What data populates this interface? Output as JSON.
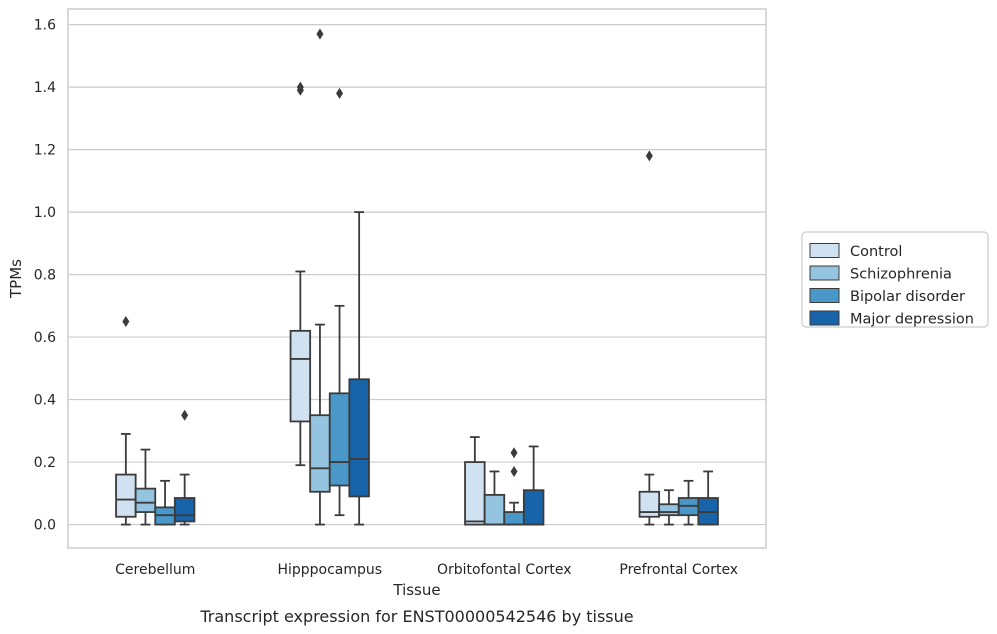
{
  "chart_data": {
    "type": "boxplot",
    "title": "",
    "caption": "Transcript expression for ENST00000542546 by tissue",
    "xlabel": "Tissue",
    "ylabel": "TPMs",
    "ylim": [
      -0.075,
      1.65
    ],
    "yticks": [
      "0.0",
      "0.2",
      "0.4",
      "0.6",
      "0.8",
      "1.0",
      "1.2",
      "1.4",
      "1.6"
    ],
    "grid": true,
    "legend_position": "outside-right",
    "categories": [
      "Cerebellum",
      "Hipppocampus",
      "Orbitofontal Cortex",
      "Prefrontal Cortex"
    ],
    "series": [
      {
        "name": "Control",
        "color": "#d0e1f2",
        "boxes": [
          {
            "min": 0.0,
            "q1": 0.025,
            "median": 0.08,
            "q3": 0.16,
            "max": 0.29,
            "outliers": [
              0.65
            ]
          },
          {
            "min": 0.19,
            "q1": 0.33,
            "median": 0.53,
            "q3": 0.62,
            "max": 0.81,
            "outliers": [
              1.39,
              1.4
            ]
          },
          {
            "min": 0.0,
            "q1": 0.0,
            "median": 0.01,
            "q3": 0.2,
            "max": 0.28,
            "outliers": []
          },
          {
            "min": 0.0,
            "q1": 0.025,
            "median": 0.04,
            "q3": 0.105,
            "max": 0.16,
            "outliers": [
              1.18
            ]
          }
        ]
      },
      {
        "name": "Schizophrenia",
        "color": "#94c4df",
        "boxes": [
          {
            "min": 0.0,
            "q1": 0.04,
            "median": 0.07,
            "q3": 0.115,
            "max": 0.24,
            "outliers": []
          },
          {
            "min": 0.0,
            "q1": 0.105,
            "median": 0.18,
            "q3": 0.35,
            "max": 0.64,
            "outliers": [
              1.57
            ]
          },
          {
            "min": 0.0,
            "q1": 0.0,
            "median": 0.0,
            "q3": 0.095,
            "max": 0.17,
            "outliers": []
          },
          {
            "min": 0.0,
            "q1": 0.03,
            "median": 0.04,
            "q3": 0.065,
            "max": 0.11,
            "outliers": []
          }
        ]
      },
      {
        "name": "Bipolar disorder",
        "color": "#4a98c9",
        "boxes": [
          {
            "min": 0.0,
            "q1": 0.0,
            "median": 0.03,
            "q3": 0.055,
            "max": 0.14,
            "outliers": []
          },
          {
            "min": 0.03,
            "q1": 0.125,
            "median": 0.2,
            "q3": 0.42,
            "max": 0.7,
            "outliers": [
              1.38
            ]
          },
          {
            "min": 0.0,
            "q1": 0.0,
            "median": 0.0,
            "q3": 0.04,
            "max": 0.07,
            "outliers": [
              0.17,
              0.23
            ]
          },
          {
            "min": 0.0,
            "q1": 0.03,
            "median": 0.06,
            "q3": 0.085,
            "max": 0.14,
            "outliers": []
          }
        ]
      },
      {
        "name": "Major depression",
        "color": "#1764ab",
        "boxes": [
          {
            "min": 0.0,
            "q1": 0.01,
            "median": 0.03,
            "q3": 0.085,
            "max": 0.16,
            "outliers": [
              0.35
            ]
          },
          {
            "min": 0.0,
            "q1": 0.09,
            "median": 0.21,
            "q3": 0.465,
            "max": 1.0,
            "outliers": []
          },
          {
            "min": 0.0,
            "q1": 0.0,
            "median": 0.0,
            "q3": 0.11,
            "max": 0.25,
            "outliers": []
          },
          {
            "min": 0.0,
            "q1": 0.0,
            "median": 0.04,
            "q3": 0.085,
            "max": 0.17,
            "outliers": []
          }
        ]
      }
    ]
  }
}
